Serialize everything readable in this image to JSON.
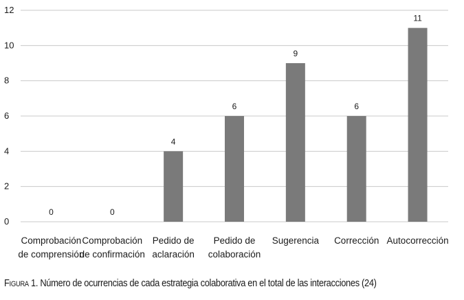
{
  "chart_data": {
    "type": "bar",
    "categories": [
      [
        "Comprobación",
        "de comprensión"
      ],
      [
        "Comprobación",
        "de confirmación"
      ],
      [
        "Pedido de",
        "aclaración"
      ],
      [
        "Pedido de",
        "colaboración"
      ],
      [
        "Sugerencia"
      ],
      [
        "Corrección"
      ],
      [
        "Autocorrección"
      ]
    ],
    "values": [
      0,
      0,
      4,
      6,
      9,
      6,
      11
    ],
    "data_labels": [
      "0",
      "0",
      "4",
      "6",
      "9",
      "6",
      "11"
    ],
    "ylim": [
      0,
      12
    ],
    "yticks": [
      0,
      2,
      4,
      6,
      8,
      10,
      12
    ],
    "grid": true,
    "bar_color": "#7a7a7a",
    "grid_color": "#c8c8c8",
    "title": "",
    "xlabel": "",
    "ylabel": ""
  },
  "caption": {
    "label": "Figura 1.",
    "text": " Número de ocurrencias de cada estrategia colaborativa en el total de las interacciones (24)"
  }
}
